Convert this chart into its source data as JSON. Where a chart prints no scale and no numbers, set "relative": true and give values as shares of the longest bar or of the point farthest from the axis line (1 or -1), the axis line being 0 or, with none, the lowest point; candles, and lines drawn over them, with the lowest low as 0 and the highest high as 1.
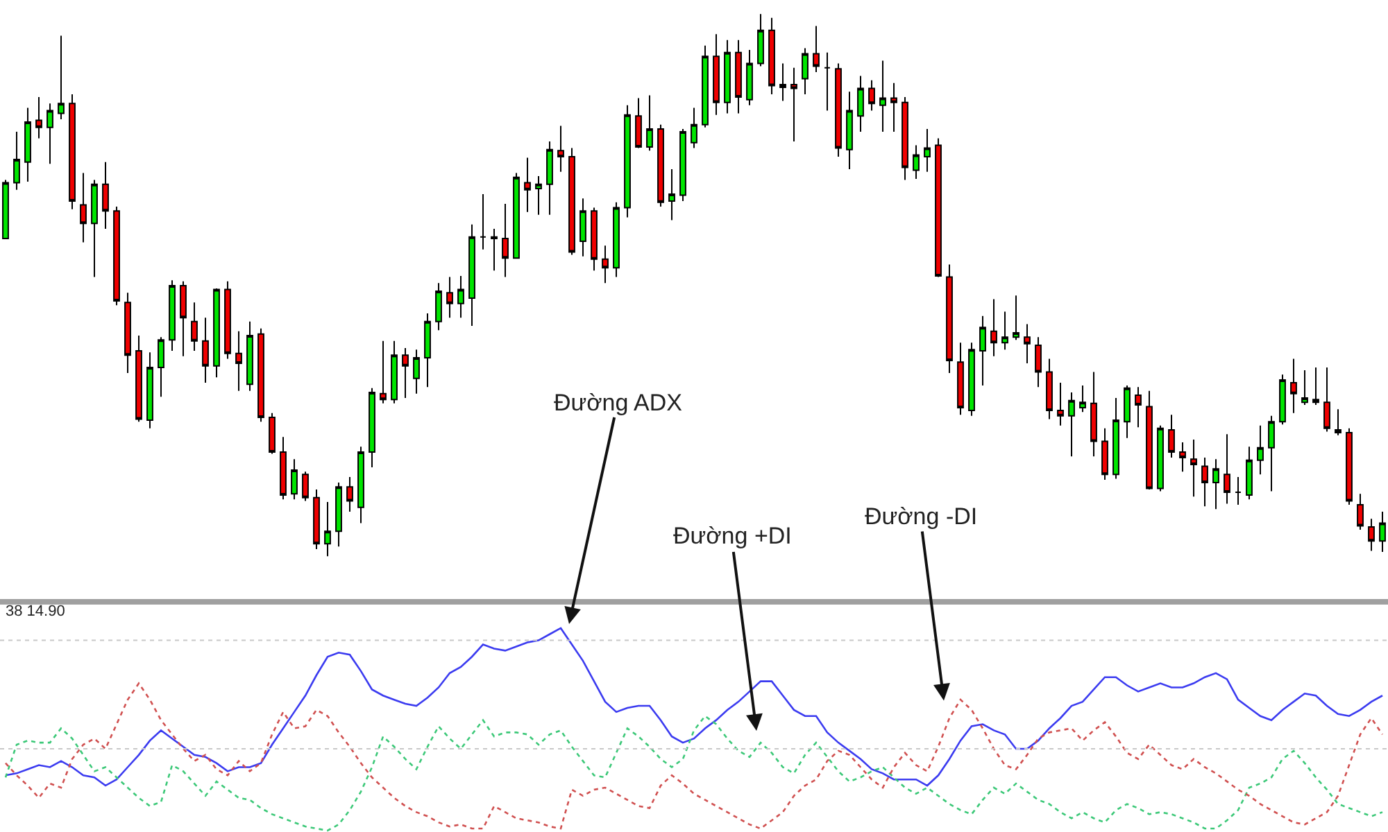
{
  "chart_data": [
    {
      "type": "candlestick",
      "relative": true,
      "categories": [
        null,
        null,
        null,
        null,
        null,
        null,
        null,
        null,
        null,
        null,
        null,
        null,
        null,
        null,
        null,
        null,
        null,
        null,
        null,
        null,
        null,
        null,
        null,
        null,
        null,
        null,
        null,
        null,
        null,
        null,
        null,
        null,
        null,
        null,
        null,
        null,
        null,
        null,
        null,
        null,
        null,
        null,
        null,
        null,
        null,
        null,
        null,
        null,
        null,
        null,
        null,
        null,
        null,
        null,
        null,
        null,
        null,
        null,
        null,
        null,
        null,
        null,
        null,
        null,
        null,
        null,
        null,
        null,
        null,
        null,
        null,
        null,
        null,
        null,
        null,
        null,
        null,
        null,
        null,
        null,
        null,
        null,
        null,
        null,
        null,
        null,
        null,
        null,
        null,
        null,
        null,
        null,
        null,
        null,
        null,
        null,
        null,
        null,
        null,
        null,
        null,
        null,
        null,
        null,
        null,
        null,
        null,
        null,
        null,
        null,
        null,
        null,
        null,
        null,
        null,
        null,
        null,
        null,
        null,
        null,
        null,
        null,
        null,
        null,
        null
      ],
      "ohlc": [
        [
          0.586,
          0.694,
          0.586,
          0.689
        ],
        [
          0.689,
          0.783,
          0.676,
          0.732
        ],
        [
          0.727,
          0.827,
          0.691,
          0.801
        ],
        [
          0.804,
          0.847,
          0.771,
          0.791
        ],
        [
          0.791,
          0.835,
          0.724,
          0.822
        ],
        [
          0.817,
          0.96,
          0.806,
          0.835
        ],
        [
          0.835,
          0.852,
          0.64,
          0.655
        ],
        [
          0.648,
          0.707,
          0.579,
          0.614
        ],
        [
          0.614,
          0.694,
          0.515,
          0.686
        ],
        [
          0.686,
          0.727,
          0.604,
          0.637
        ],
        [
          0.637,
          0.645,
          0.463,
          0.471
        ],
        [
          0.468,
          0.486,
          0.338,
          0.371
        ],
        [
          0.379,
          0.407,
          0.248,
          0.253
        ],
        [
          0.251,
          0.376,
          0.236,
          0.348
        ],
        [
          0.348,
          0.404,
          0.294,
          0.399
        ],
        [
          0.399,
          0.509,
          0.379,
          0.499
        ],
        [
          0.499,
          0.507,
          0.369,
          0.44
        ],
        [
          0.433,
          0.468,
          0.379,
          0.397
        ],
        [
          0.397,
          0.44,
          0.32,
          0.351
        ],
        [
          0.351,
          0.494,
          0.33,
          0.492
        ],
        [
          0.492,
          0.507,
          0.364,
          0.374
        ],
        [
          0.374,
          0.415,
          0.305,
          0.356
        ],
        [
          0.317,
          0.433,
          0.305,
          0.407
        ],
        [
          0.41,
          0.42,
          0.248,
          0.256
        ],
        [
          0.256,
          0.264,
          0.189,
          0.192
        ],
        [
          0.192,
          0.22,
          0.105,
          0.113
        ],
        [
          0.115,
          0.179,
          0.105,
          0.159
        ],
        [
          0.151,
          0.156,
          0.102,
          0.108
        ],
        [
          0.108,
          0.123,
          0.013,
          0.023
        ],
        [
          0.023,
          0.1,
          0.0,
          0.046
        ],
        [
          0.046,
          0.136,
          0.018,
          0.128
        ],
        [
          0.128,
          0.146,
          0.082,
          0.102
        ],
        [
          0.09,
          0.202,
          0.061,
          0.192
        ],
        [
          0.192,
          0.31,
          0.164,
          0.302
        ],
        [
          0.3,
          0.397,
          0.282,
          0.289
        ],
        [
          0.289,
          0.397,
          0.282,
          0.371
        ],
        [
          0.371,
          0.384,
          0.292,
          0.351
        ],
        [
          0.328,
          0.381,
          0.3,
          0.366
        ],
        [
          0.366,
          0.448,
          0.312,
          0.433
        ],
        [
          0.433,
          0.504,
          0.417,
          0.489
        ],
        [
          0.486,
          0.515,
          0.44,
          0.466
        ],
        [
          0.466,
          0.517,
          0.44,
          0.492
        ],
        [
          0.476,
          0.612,
          0.425,
          0.589
        ],
        [
          0.589,
          0.668,
          0.566,
          0.589
        ],
        [
          0.586,
          0.604,
          0.527,
          0.589
        ],
        [
          0.586,
          0.65,
          0.515,
          0.55
        ],
        [
          0.55,
          0.707,
          0.55,
          0.699
        ],
        [
          0.689,
          0.735,
          0.635,
          0.676
        ],
        [
          0.678,
          0.701,
          0.63,
          0.686
        ],
        [
          0.686,
          0.765,
          0.63,
          0.75
        ],
        [
          0.748,
          0.794,
          0.709,
          0.737
        ],
        [
          0.737,
          0.753,
          0.556,
          0.561
        ],
        [
          0.581,
          0.66,
          0.553,
          0.637
        ],
        [
          0.637,
          0.643,
          0.527,
          0.548
        ],
        [
          0.548,
          0.573,
          0.504,
          0.532
        ],
        [
          0.532,
          0.653,
          0.515,
          0.643
        ],
        [
          0.643,
          0.832,
          0.625,
          0.814
        ],
        [
          0.812,
          0.845,
          0.753,
          0.755
        ],
        [
          0.755,
          0.85,
          0.748,
          0.788
        ],
        [
          0.788,
          0.796,
          0.645,
          0.653
        ],
        [
          0.655,
          0.714,
          0.62,
          0.668
        ],
        [
          0.666,
          0.788,
          0.655,
          0.783
        ],
        [
          0.763,
          0.827,
          0.753,
          0.796
        ],
        [
          0.796,
          0.942,
          0.791,
          0.922
        ],
        [
          0.922,
          0.963,
          0.814,
          0.837
        ],
        [
          0.837,
          0.952,
          0.817,
          0.929
        ],
        [
          0.929,
          0.952,
          0.817,
          0.847
        ],
        [
          0.842,
          0.934,
          0.832,
          0.909
        ],
        [
          0.909,
          1.0,
          0.904,
          0.97
        ],
        [
          0.97,
          0.993,
          0.852,
          0.868
        ],
        [
          0.865,
          0.909,
          0.84,
          0.87
        ],
        [
          0.87,
          0.901,
          0.765,
          0.863
        ],
        [
          0.881,
          0.937,
          0.852,
          0.927
        ],
        [
          0.927,
          0.978,
          0.893,
          0.904
        ],
        [
          0.901,
          0.929,
          0.822,
          0.901
        ],
        [
          0.899,
          0.909,
          0.737,
          0.753
        ],
        [
          0.75,
          0.857,
          0.714,
          0.822
        ],
        [
          0.812,
          0.886,
          0.783,
          0.863
        ],
        [
          0.863,
          0.878,
          0.822,
          0.835
        ],
        [
          0.832,
          0.914,
          0.783,
          0.845
        ],
        [
          0.845,
          0.873,
          0.783,
          0.837
        ],
        [
          0.837,
          0.847,
          0.694,
          0.717
        ],
        [
          0.712,
          0.758,
          0.696,
          0.74
        ],
        [
          0.737,
          0.788,
          0.709,
          0.753
        ],
        [
          0.758,
          0.771,
          0.515,
          0.517
        ],
        [
          0.515,
          0.538,
          0.338,
          0.361
        ],
        [
          0.358,
          0.394,
          0.261,
          0.274
        ],
        [
          0.269,
          0.394,
          0.259,
          0.381
        ],
        [
          0.379,
          0.443,
          0.315,
          0.422
        ],
        [
          0.415,
          0.474,
          0.369,
          0.394
        ],
        [
          0.394,
          0.451,
          0.381,
          0.404
        ],
        [
          0.404,
          0.481,
          0.399,
          0.412
        ],
        [
          0.404,
          0.428,
          0.356,
          0.392
        ],
        [
          0.389,
          0.404,
          0.312,
          0.34
        ],
        [
          0.34,
          0.364,
          0.253,
          0.269
        ],
        [
          0.269,
          0.32,
          0.241,
          0.259
        ],
        [
          0.259,
          0.302,
          0.184,
          0.287
        ],
        [
          0.274,
          0.315,
          0.266,
          0.284
        ],
        [
          0.282,
          0.34,
          0.184,
          0.212
        ],
        [
          0.212,
          0.236,
          0.141,
          0.151
        ],
        [
          0.151,
          0.292,
          0.143,
          0.251
        ],
        [
          0.248,
          0.315,
          0.218,
          0.31
        ],
        [
          0.297,
          0.312,
          0.238,
          0.279
        ],
        [
          0.276,
          0.305,
          0.123,
          0.125
        ],
        [
          0.125,
          0.241,
          0.12,
          0.236
        ],
        [
          0.233,
          0.261,
          0.182,
          0.192
        ],
        [
          0.192,
          0.21,
          0.156,
          0.182
        ],
        [
          0.179,
          0.215,
          0.11,
          0.169
        ],
        [
          0.166,
          0.182,
          0.092,
          0.136
        ],
        [
          0.136,
          0.179,
          0.087,
          0.161
        ],
        [
          0.151,
          0.225,
          0.097,
          0.118
        ],
        [
          0.118,
          0.146,
          0.095,
          0.118
        ],
        [
          0.113,
          0.202,
          0.105,
          0.177
        ],
        [
          0.177,
          0.241,
          0.151,
          0.2
        ],
        [
          0.2,
          0.259,
          0.12,
          0.248
        ],
        [
          0.248,
          0.335,
          0.243,
          0.325
        ],
        [
          0.32,
          0.364,
          0.264,
          0.3
        ],
        [
          0.284,
          0.343,
          0.279,
          0.292
        ],
        [
          0.289,
          0.348,
          0.279,
          0.284
        ],
        [
          0.284,
          0.348,
          0.23,
          0.236
        ],
        [
          0.233,
          0.271,
          0.223,
          0.228
        ],
        [
          0.228,
          0.236,
          0.095,
          0.102
        ],
        [
          0.095,
          0.115,
          0.049,
          0.056
        ],
        [
          0.054,
          0.069,
          0.01,
          0.028
        ],
        [
          0.028,
          0.082,
          0.008,
          0.061
        ]
      ]
    },
    {
      "type": "line",
      "relative": true,
      "categories": [
        null,
        null,
        null,
        null,
        null,
        null,
        null,
        null,
        null,
        null,
        null,
        null,
        null,
        null,
        null,
        null,
        null,
        null,
        null,
        null,
        null,
        null,
        null,
        null,
        null,
        null,
        null,
        null,
        null,
        null,
        null,
        null,
        null,
        null,
        null,
        null,
        null,
        null,
        null,
        null,
        null,
        null,
        null,
        null,
        null,
        null,
        null,
        null,
        null,
        null,
        null,
        null,
        null,
        null,
        null,
        null,
        null,
        null,
        null,
        null,
        null,
        null,
        null,
        null,
        null,
        null,
        null,
        null,
        null,
        null,
        null,
        null,
        null,
        null,
        null,
        null,
        null,
        null,
        null,
        null,
        null,
        null,
        null,
        null,
        null,
        null,
        null,
        null,
        null,
        null,
        null,
        null,
        null,
        null,
        null,
        null,
        null,
        null,
        null,
        null,
        null,
        null,
        null,
        null,
        null,
        null,
        null,
        null,
        null,
        null,
        null,
        null,
        null,
        null,
        null,
        null,
        null,
        null,
        null,
        null,
        null,
        null,
        null,
        null,
        null
      ],
      "series": [
        {
          "color": "#3b3bf0",
          "line_style": "solid",
          "values": [
            0.28,
            0.29,
            0.31,
            0.33,
            0.32,
            0.35,
            0.32,
            0.28,
            0.27,
            0.23,
            0.26,
            0.32,
            0.38,
            0.45,
            0.5,
            0.46,
            0.42,
            0.38,
            0.37,
            0.34,
            0.3,
            0.32,
            0.32,
            0.34,
            0.43,
            0.51,
            0.59,
            0.67,
            0.77,
            0.86,
            0.88,
            0.87,
            0.79,
            0.7,
            0.67,
            0.65,
            0.63,
            0.62,
            0.66,
            0.71,
            0.78,
            0.81,
            0.86,
            0.92,
            0.9,
            0.89,
            0.91,
            0.93,
            0.94,
            0.97,
            1.0,
            0.92,
            0.84,
            0.74,
            0.64,
            0.59,
            0.61,
            0.62,
            0.62,
            0.55,
            0.47,
            0.44,
            0.46,
            0.51,
            0.55,
            0.6,
            0.64,
            0.69,
            0.74,
            0.74,
            0.67,
            0.6,
            0.57,
            0.57,
            0.49,
            0.44,
            0.4,
            0.36,
            0.31,
            0.29,
            0.26,
            0.26,
            0.26,
            0.23,
            0.28,
            0.36,
            0.45,
            0.52,
            0.53,
            0.5,
            0.48,
            0.41,
            0.41,
            0.45,
            0.51,
            0.56,
            0.62,
            0.64,
            0.7,
            0.76,
            0.76,
            0.72,
            0.69,
            0.71,
            0.73,
            0.71,
            0.71,
            0.73,
            0.76,
            0.78,
            0.75,
            0.65,
            0.61,
            0.57,
            0.55,
            0.6,
            0.64,
            0.68,
            0.67,
            0.62,
            0.58,
            0.57,
            0.6,
            0.64,
            0.67
          ]
        },
        {
          "color": "#3cc878",
          "line_style": "dashed",
          "values": [
            0.27,
            0.43,
            0.45,
            0.44,
            0.44,
            0.51,
            0.46,
            0.38,
            0.3,
            0.32,
            0.27,
            0.22,
            0.17,
            0.13,
            0.15,
            0.33,
            0.3,
            0.24,
            0.18,
            0.25,
            0.21,
            0.17,
            0.16,
            0.12,
            0.09,
            0.07,
            0.05,
            0.03,
            0.02,
            0.01,
            0.04,
            0.11,
            0.2,
            0.32,
            0.47,
            0.42,
            0.36,
            0.31,
            0.42,
            0.52,
            0.46,
            0.41,
            0.48,
            0.55,
            0.47,
            0.49,
            0.49,
            0.48,
            0.43,
            0.48,
            0.5,
            0.42,
            0.35,
            0.28,
            0.27,
            0.39,
            0.51,
            0.47,
            0.42,
            0.36,
            0.32,
            0.36,
            0.5,
            0.57,
            0.53,
            0.46,
            0.4,
            0.37,
            0.44,
            0.39,
            0.32,
            0.29,
            0.38,
            0.44,
            0.37,
            0.3,
            0.25,
            0.27,
            0.3,
            0.32,
            0.27,
            0.22,
            0.19,
            0.22,
            0.18,
            0.14,
            0.11,
            0.09,
            0.16,
            0.22,
            0.19,
            0.24,
            0.2,
            0.16,
            0.14,
            0.1,
            0.07,
            0.1,
            0.07,
            0.05,
            0.11,
            0.14,
            0.12,
            0.09,
            0.1,
            0.09,
            0.07,
            0.05,
            0.02,
            0.02,
            0.06,
            0.11,
            0.22,
            0.24,
            0.27,
            0.36,
            0.4,
            0.34,
            0.27,
            0.21,
            0.14,
            0.12,
            0.1,
            0.08,
            0.1
          ]
        },
        {
          "color": "#d05050",
          "line_style": "dashed",
          "values": [
            0.34,
            0.28,
            0.23,
            0.17,
            0.24,
            0.22,
            0.36,
            0.43,
            0.46,
            0.41,
            0.53,
            0.65,
            0.73,
            0.65,
            0.55,
            0.48,
            0.41,
            0.35,
            0.38,
            0.31,
            0.28,
            0.35,
            0.3,
            0.34,
            0.48,
            0.59,
            0.51,
            0.52,
            0.6,
            0.57,
            0.49,
            0.42,
            0.34,
            0.27,
            0.22,
            0.17,
            0.13,
            0.1,
            0.08,
            0.05,
            0.03,
            0.04,
            0.02,
            0.02,
            0.13,
            0.1,
            0.07,
            0.06,
            0.05,
            0.03,
            0.02,
            0.21,
            0.18,
            0.21,
            0.22,
            0.19,
            0.16,
            0.13,
            0.12,
            0.23,
            0.28,
            0.24,
            0.19,
            0.16,
            0.13,
            0.1,
            0.07,
            0.04,
            0.02,
            0.06,
            0.1,
            0.18,
            0.23,
            0.26,
            0.35,
            0.4,
            0.38,
            0.32,
            0.26,
            0.22,
            0.32,
            0.39,
            0.33,
            0.3,
            0.42,
            0.56,
            0.65,
            0.6,
            0.51,
            0.41,
            0.33,
            0.31,
            0.38,
            0.46,
            0.49,
            0.5,
            0.51,
            0.45,
            0.5,
            0.54,
            0.47,
            0.39,
            0.36,
            0.43,
            0.38,
            0.33,
            0.31,
            0.36,
            0.32,
            0.29,
            0.25,
            0.21,
            0.18,
            0.14,
            0.11,
            0.08,
            0.05,
            0.04,
            0.07,
            0.1,
            0.18,
            0.33,
            0.48,
            0.56,
            0.48
          ]
        }
      ],
      "ref_lines": [
        {
          "axis": "y",
          "value": 0.94,
          "color": "#c8c8c8",
          "line_style": "dashed"
        },
        {
          "axis": "y",
          "value": 0.41,
          "color": "#c8c8c8",
          "line_style": "dashed"
        }
      ],
      "annotations": [
        "38 14.90",
        "Đường ADX",
        "Đường +DI",
        "Đường -DI"
      ]
    }
  ]
}
